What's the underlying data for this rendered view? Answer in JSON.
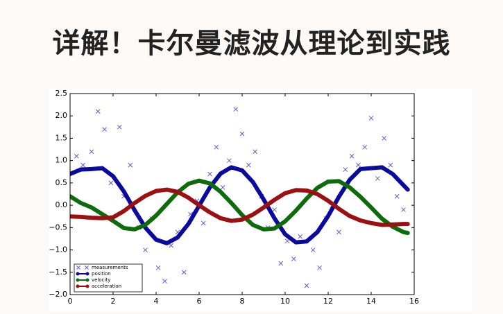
{
  "title": "详解！卡尔曼滤波从理论到实践",
  "chart_data": {
    "type": "line",
    "x": [
      0,
      0.5,
      1,
      1.5,
      2,
      2.5,
      3,
      3.5,
      4,
      4.5,
      5,
      5.5,
      6,
      6.5,
      7,
      7.5,
      8,
      8.5,
      9,
      9.5,
      10,
      10.5,
      11,
      11.5,
      12,
      12.5,
      13,
      13.5,
      14,
      14.5,
      15,
      15.5,
      15.7
    ],
    "series": [
      {
        "name": "measurements",
        "color": "#5b5bd6",
        "marker": "x",
        "x": [
          0.3,
          0.6,
          1.0,
          1.3,
          1.6,
          1.9,
          2.3,
          2.5,
          2.8,
          3.2,
          3.5,
          3.8,
          4.1,
          4.4,
          4.7,
          5.0,
          5.3,
          5.6,
          5.9,
          6.2,
          6.5,
          6.8,
          7.1,
          7.4,
          7.7,
          8.0,
          8.3,
          8.6,
          8.9,
          9.2,
          9.5,
          9.8,
          10.1,
          10.4,
          10.7,
          11.0,
          11.3,
          11.6,
          11.9,
          12.2,
          12.5,
          12.8,
          13.1,
          13.4,
          13.7,
          14.0,
          14.3,
          14.6,
          14.9,
          15.2,
          15.5
        ],
        "values": [
          1.1,
          0.9,
          1.2,
          2.1,
          1.7,
          0.5,
          1.75,
          0.2,
          0.9,
          -0.5,
          -1.0,
          -0.3,
          -1.4,
          -1.7,
          -0.9,
          -0.6,
          -1.5,
          -0.2,
          0.1,
          -0.4,
          0.7,
          1.3,
          0.4,
          1.0,
          2.15,
          1.6,
          0.9,
          1.2,
          0.2,
          -0.5,
          -0.1,
          -1.3,
          -0.8,
          -1.2,
          -0.7,
          -1.8,
          -1.0,
          -1.4,
          -0.3,
          0.0,
          -0.6,
          0.8,
          1.1,
          0.9,
          1.3,
          1.95,
          0.6,
          1.5,
          0.9,
          0.2,
          -0.1
        ]
      },
      {
        "name": "position",
        "color": "#0a0a9c",
        "values": [
          0.7,
          0.8,
          0.81,
          0.83,
          0.65,
          0.31,
          -0.11,
          -0.5,
          -0.77,
          -0.85,
          -0.72,
          -0.42,
          -0.01,
          0.4,
          0.71,
          0.85,
          0.78,
          0.52,
          0.13,
          -0.29,
          -0.65,
          -0.83,
          -0.81,
          -0.6,
          -0.24,
          0.19,
          0.57,
          0.81,
          0.83,
          0.85,
          0.7,
          0.45,
          0.35
        ]
      },
      {
        "name": "velocity",
        "color": "#0d6b0d",
        "values": [
          0.2,
          0.05,
          -0.05,
          -0.2,
          -0.35,
          -0.51,
          -0.54,
          -0.44,
          -0.23,
          0.03,
          0.29,
          0.48,
          0.55,
          0.49,
          0.3,
          0.05,
          -0.22,
          -0.44,
          -0.54,
          -0.52,
          -0.36,
          -0.12,
          0.15,
          0.39,
          0.53,
          0.54,
          0.4,
          0.19,
          -0.05,
          -0.3,
          -0.48,
          -0.6,
          -0.62
        ]
      },
      {
        "name": "acceleration",
        "color": "#9b1010",
        "values": [
          -0.25,
          -0.26,
          -0.28,
          -0.29,
          -0.27,
          -0.13,
          0.05,
          0.21,
          0.32,
          0.35,
          0.3,
          0.17,
          0.0,
          -0.16,
          -0.29,
          -0.35,
          -0.32,
          -0.21,
          -0.05,
          0.12,
          0.27,
          0.34,
          0.33,
          0.25,
          0.1,
          -0.08,
          -0.24,
          -0.34,
          -0.4,
          -0.44,
          -0.43,
          -0.42,
          -0.42
        ]
      }
    ],
    "xlim": [
      0,
      16
    ],
    "xticks": [
      0,
      2,
      4,
      6,
      8,
      10,
      12,
      14,
      16
    ],
    "ylim": [
      -2,
      2.5
    ],
    "yticks": [
      {
        "value": -2,
        "label": "−2.0"
      },
      {
        "value": -1.5,
        "label": "−1.5"
      },
      {
        "value": -1,
        "label": "−1.0"
      },
      {
        "value": -0.5,
        "label": "−0.5"
      },
      {
        "value": 0,
        "label": "0.0"
      },
      {
        "value": 0.5,
        "label": "0.5"
      },
      {
        "value": 1,
        "label": "1.0"
      },
      {
        "value": 1.5,
        "label": "1.5"
      },
      {
        "value": 2,
        "label": "2.0"
      },
      {
        "value": 2.5,
        "label": "2.5"
      }
    ],
    "legend": "lower left"
  }
}
